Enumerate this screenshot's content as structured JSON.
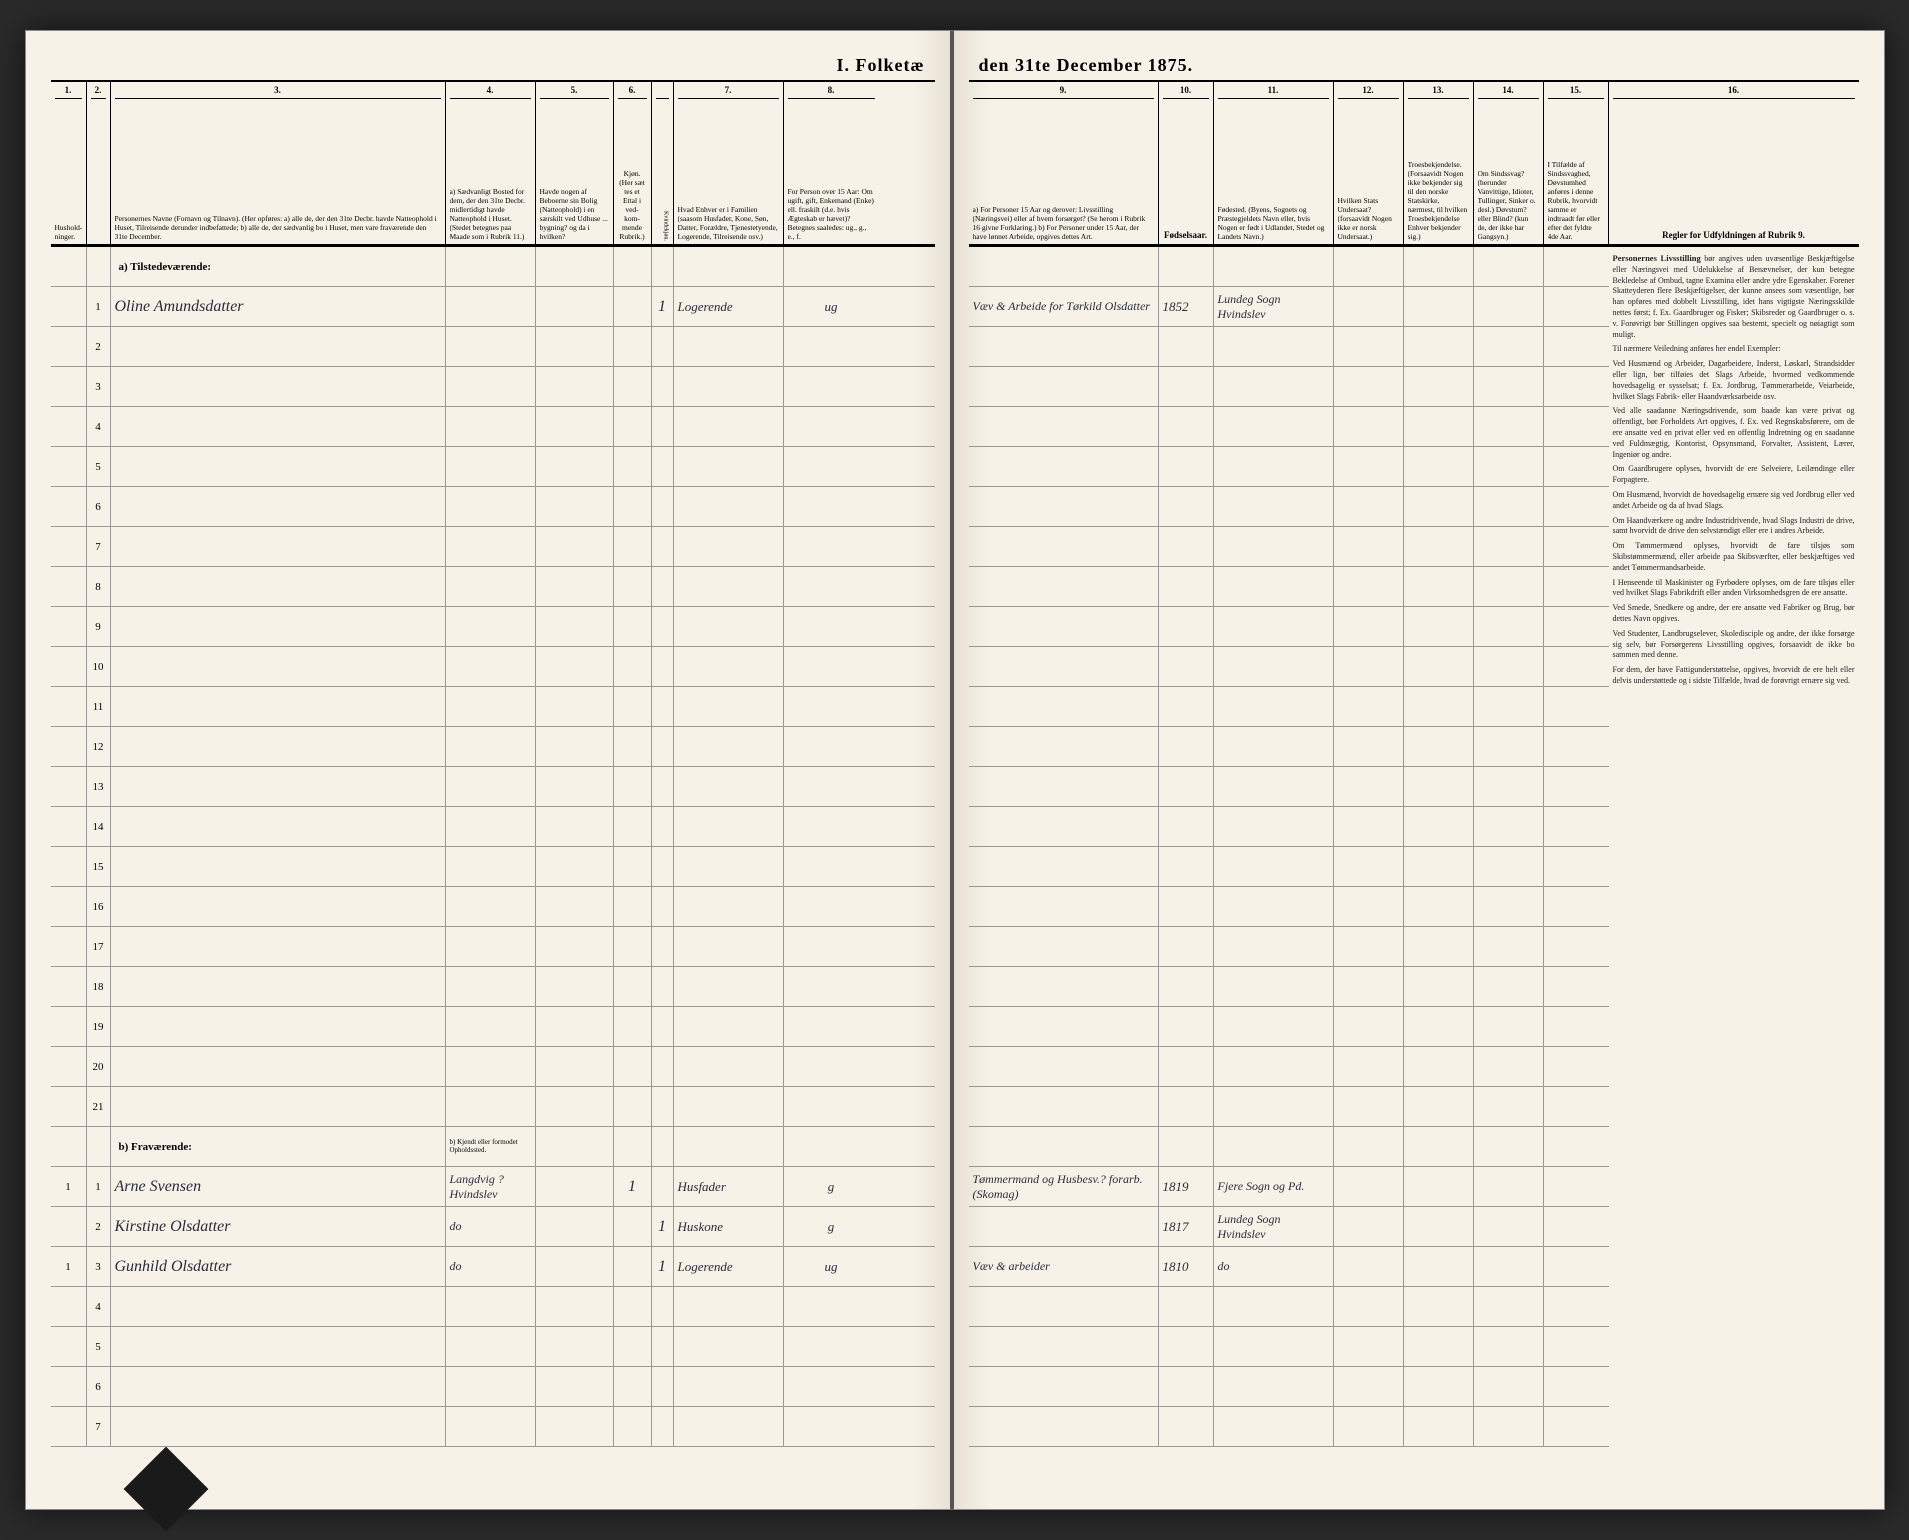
{
  "title_left": "I. Folketæ",
  "title_right": "den 31te December 1875.",
  "columns_left": [
    {
      "num": "1.",
      "label": "Hushold-\nninger."
    },
    {
      "num": "2.",
      "label": ""
    },
    {
      "num": "3.",
      "label": "Personernes Navne (Fornavn og Tilnavn).\n\n(Her opføres:\na) alle de, der den 31te Decbr. havde Natteophold i Huset, Tilreisende derunder indbefattede;\nb) alle de, der sædvanlig bo i Huset, men vare fraværende den 31te December."
    },
    {
      "num": "4.",
      "label": "a) Sædvanligt Bosted for dem, der den 31te Decbr. midlertidigt havde Natteophold i Huset. (Stedet betegnes paa Maade som i Rubrik 11.)"
    },
    {
      "num": "5.",
      "label": "Havde nogen af Beboerne sin Bolig (Natteophold) i en særskilt ved Udhuse ... bygning? og da i hvilken?"
    },
    {
      "num": "6.",
      "label": "Kjøn. (Her sæt tes et Ettal i ved-kom-mende Rubrik.)"
    },
    {
      "num": "7.",
      "label": "Hvad Enhver er i Familien\n(saasom Husfader, Kone, Søn, Datter, Forældre, Tjenestetyende, Logerende, Tilreisende osv.)"
    },
    {
      "num": "8.",
      "label": "For Person over 15 Aar: Om ugift, gift, Enkemand (Enke) ell. fraskilt (d.e. hvis Ægteskab er hævet)?\nBetegnes saaledes: ug., g., e., f."
    }
  ],
  "columns_right": [
    {
      "num": "9.",
      "label": "a) For Personer 15 Aar og derover: Livsstilling (Næringsvei) eller af hvem forsørget? (Se herom i Rubrik 16 givne Forklaring.)\nb) For Personer under 15 Aar, der have lønnet Arbeide, opgives dettes Art."
    },
    {
      "num": "10.",
      "label": "Fødselsaar."
    },
    {
      "num": "11.",
      "label": "Fødested.\n(Byens, Sognets og Præstegjeldets Navn eller, hvis Nogen er født i Udlandet, Stedet og Landets Navn.)"
    },
    {
      "num": "12.",
      "label": "Hvilken Stats Undersaat?\n(forsaavidt Nogen ikke er norsk Undersaat.)"
    },
    {
      "num": "13.",
      "label": "Troesbekjendelse.\n(Forsaavidt Nogen ikke bekjender sig til den norske Statskirke, nærmest, til hvilken Troesbekjendelse Enhver bekjender sig.)"
    },
    {
      "num": "14.",
      "label": "Om Sindssvag?\n(herunder Vanvittige, Idioter, Tullinger, Sinker o. desl.)\nDøvstum? eller Blind?\n(kun de, der ikke har Gangsyn.)"
    },
    {
      "num": "15.",
      "label": "I Tilfælde af Sindssvaghed, Døvstumhed anføres i denne Rubrik, hvorvidt samme er indtraadt før eller efter det fyldte 4de Aar."
    },
    {
      "num": "16.",
      "label": "Regler for Udfyldningen af Rubrik 9."
    }
  ],
  "section_a": "a) Tilstedeværende:",
  "section_b": "b) Fraværende:",
  "section_b_col4": "b) Kjendt eller formodet Opholdssted.",
  "kjoen_sub": [
    "Mandkjøn.",
    "Kvindekjøn."
  ],
  "present": [
    {
      "no": "1",
      "hh": "",
      "name": "Oline Amundsdatter",
      "c4": "",
      "c5": "",
      "c6a": "",
      "c6b": "1",
      "fam": "Logerende",
      "civ": "ug",
      "occ": "Væv & Arbeide for Tørkild Olsdatter",
      "year": "1852",
      "place": "Lundeg Sogn Hvindslev"
    }
  ],
  "absent": [
    {
      "no": "1",
      "hh": "1",
      "name": "Arne Svensen",
      "c4": "Langdvig ? Hvindslev",
      "c5": "",
      "c6a": "1",
      "c6b": "",
      "fam": "Husfader",
      "civ": "g",
      "occ": "Tømmermand og Husbesv.? forarb. (Skomag)",
      "year": "1819",
      "place": "Fjere Sogn og Pd."
    },
    {
      "no": "2",
      "hh": "",
      "name": "Kirstine Olsdatter",
      "c4": "do",
      "c5": "",
      "c6a": "",
      "c6b": "1",
      "fam": "Huskone",
      "civ": "g",
      "occ": "",
      "year": "1817",
      "place": "Lundeg Sogn Hvindslev"
    },
    {
      "no": "3",
      "hh": "1",
      "name": "Gunhild Olsdatter",
      "c4": "do",
      "c5": "",
      "c6a": "",
      "c6b": "1",
      "fam": "Logerende",
      "civ": "ug",
      "occ": "Væv & arbeider",
      "year": "1810",
      "place": "do"
    }
  ],
  "blank_rows_present": 20,
  "blank_rows_absent": 4,
  "instructions": {
    "title": "Personernes Livsstilling",
    "p1": "bør angives uden uvæsentlige Beskjæftigelse eller Næringsvei med Udelukkelse af Benævnelser, der kun betegne Bekledelse af Ombud, tagne Examina eller andre ydre Egenskaber. Forener Skatteyderen flere Beskjæftigelser, der kunne ansees som væsentlige, bør han opføres med dobbelt Livsstilling, idet hans vigtigste Næringsskilde nettes først; f. Ex. Gaardbruger og Fisker; Skibsreder og Gaardbruger o. s. v. Forøvrigt bør Stillingen opgives saa bestemt, specielt og nøiagtigt som muligt.",
    "p2": "Til nærmere Veiledning anføres her endel Exempler:",
    "p3": "Ved Husmænd og Arbeider, Dagarbeidere, Inderst, Løskarl, Strandsidder eller lign, bør tilføies det Slags Arbeide, hvormed vedkommende hovedsagelig er sysselsat; f. Ex. Jordbrug, Tømmerarbeide, Veiarbeide, hvilket Slags Fabrik- eller Haandværksarbeide osv.",
    "p4": "Ved alle saadanne Næringsdrivende, som baade kan være privat og offentligt, bør Forholdets Art opgives, f. Ex. ved Regnskabsførere, om de ere ansatte ved en privat eller ved en offentlig Indretning og en saadanne ved Fuldmægtig, Kontorist, Opsynsmand, Forvalter, Assistent, Lærer, Ingeniør og andre.",
    "p5": "Om Gaardbrugere oplyses, hvorvidt de ere Selveiere, Leilændinge eller Forpagtere.",
    "p6": "Om Husmænd, hvorvidt de hovedsagelig ernære sig ved Jordbrug eller ved andet Arbeide og da af hvad Slags.",
    "p7": "Om Haandværkere og andre Industridrivende, hvad Slags Industri de drive, samt hvorvidt de drive den selvstændigt eller ere i andres Arbeide.",
    "p8": "Om Tømmermænd oplyses, hvorvidt de fare tilsjøs som Skibstømmermænd, eller arbeide paa Skibsværfter, eller beskjæftiges ved andet Tømmermandsarbeide.",
    "p9": "I Henseende til Maskinister og Fyrbødere oplyses, om de fare tilsjøs eller ved hvilket Slags Fabrikdrift eller anden Virksomhedsgren de ere ansatte.",
    "p10": "Ved Smede, Snedkere og andre, der ere ansatte ved Fabriker og Brug, bør dettes Navn opgives.",
    "p11": "Ved Studenter, Landbrugselever, Skoledisciple og andre, der ikke forsørge sig selv, bør Forsørgerens Livsstilling opgives, forsaavidt de ikke bo sammen med denne.",
    "p12": "For dem, der have Fattigunderstøttelse, opgives, hvorvidt de ere helt eller delvis understøttede og i sidste Tilfælde, hvad de forøvrigt ernære sig ved."
  }
}
